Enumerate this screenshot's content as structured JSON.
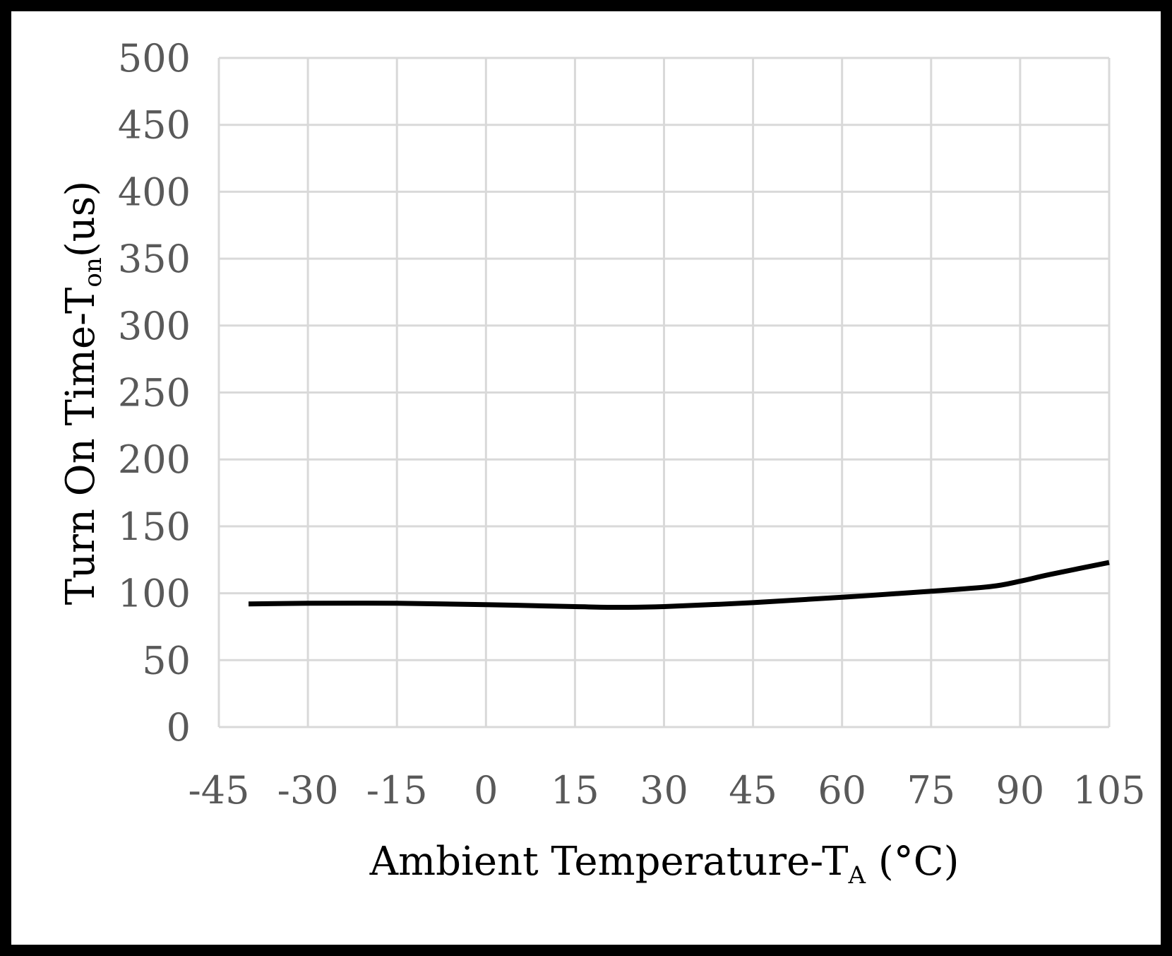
{
  "chart_data": {
    "type": "line",
    "title": "",
    "xlabel": "Ambient Temperature-T",
    "xlabel_subscript": "A",
    "xlabel_suffix": " (°C)",
    "ylabel": "Turn On Time-T",
    "ylabel_subscript": "on",
    "ylabel_suffix": "(us)",
    "xlim": [
      -45,
      105
    ],
    "ylim": [
      0,
      500
    ],
    "x_ticks": [
      -45,
      -30,
      -15,
      0,
      15,
      30,
      45,
      60,
      75,
      90,
      105
    ],
    "y_ticks": [
      0,
      50,
      100,
      150,
      200,
      250,
      300,
      350,
      400,
      450,
      500
    ],
    "grid": true,
    "series": [
      {
        "name": "Turn On Time",
        "color": "#000000",
        "x": [
          -40,
          -30,
          -15,
          0,
          15,
          22,
          30,
          45,
          60,
          75,
          85,
          90,
          95,
          105
        ],
        "y": [
          92,
          92.5,
          92.5,
          91.5,
          90,
          89.5,
          90,
          93,
          97,
          101.5,
          105,
          109,
          114,
          123
        ]
      }
    ]
  }
}
